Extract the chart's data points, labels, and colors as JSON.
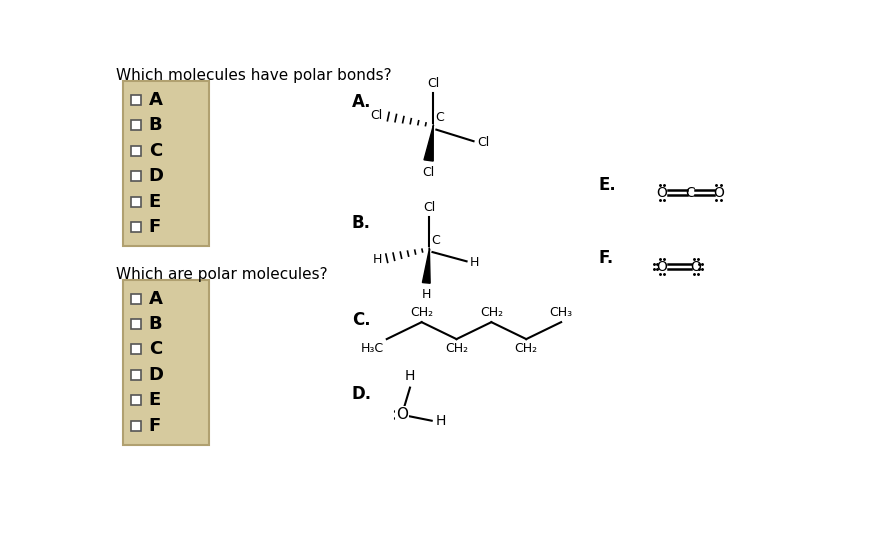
{
  "bg_color": "#ffffff",
  "box_bg": "#d6ca9e",
  "box_border": "#b0a070",
  "question1": "Which molecules have polar bonds?",
  "question2": "Which are polar molecules?",
  "labels": [
    "A",
    "B",
    "C",
    "D",
    "E",
    "F"
  ],
  "mol_labels": [
    "A.",
    "B.",
    "C.",
    "D.",
    "E.",
    "F."
  ]
}
